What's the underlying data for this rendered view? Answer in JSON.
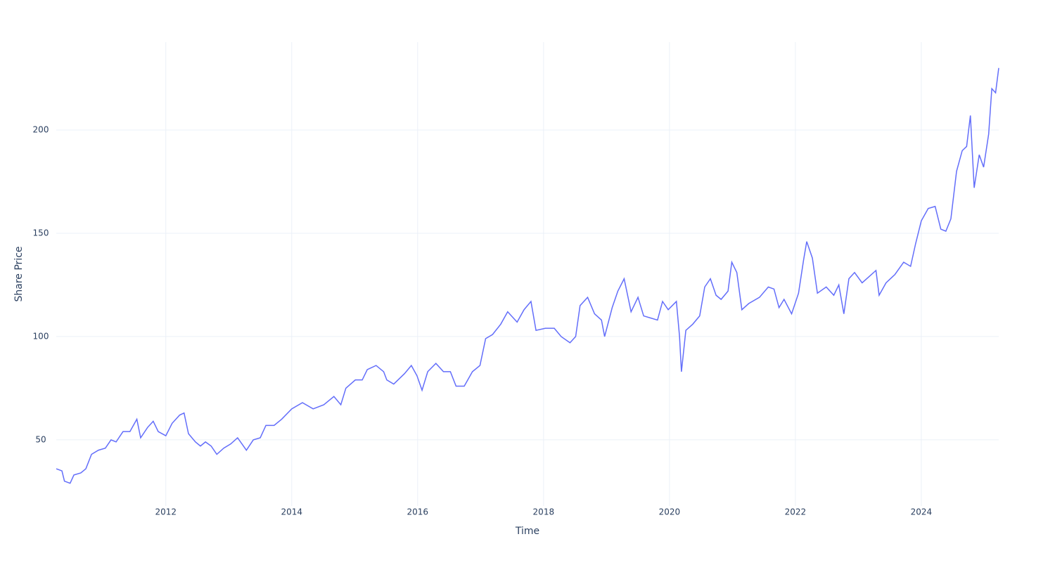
{
  "chart_data": {
    "type": "line",
    "xlabel": "Time",
    "ylabel": "Share Price",
    "x": [
      2010.26,
      2010.35,
      2010.39,
      2010.48,
      2010.54,
      2010.65,
      2010.73,
      2010.82,
      2010.93,
      2011.04,
      2011.13,
      2011.21,
      2011.32,
      2011.43,
      2011.54,
      2011.6,
      2011.71,
      2011.8,
      2011.88,
      2012.0,
      2012.1,
      2012.22,
      2012.29,
      2012.36,
      2012.47,
      2012.55,
      2012.63,
      2012.72,
      2012.81,
      2012.92,
      2013.03,
      2013.14,
      2013.28,
      2013.39,
      2013.5,
      2013.59,
      2013.72,
      2013.84,
      2014.0,
      2014.17,
      2014.34,
      2014.51,
      2014.67,
      2014.78,
      2014.86,
      2015.01,
      2015.12,
      2015.2,
      2015.34,
      2015.46,
      2015.51,
      2015.62,
      2015.79,
      2015.9,
      2015.99,
      2016.07,
      2016.16,
      2016.29,
      2016.41,
      2016.52,
      2016.61,
      2016.74,
      2016.87,
      2016.99,
      2017.08,
      2017.19,
      2017.32,
      2017.43,
      2017.58,
      2017.69,
      2017.8,
      2017.88,
      2018.03,
      2018.17,
      2018.28,
      2018.42,
      2018.51,
      2018.58,
      2018.7,
      2018.81,
      2018.92,
      2018.97,
      2019.09,
      2019.18,
      2019.28,
      2019.39,
      2019.5,
      2019.59,
      2019.7,
      2019.81,
      2019.89,
      2019.98,
      2020.11,
      2020.16,
      2020.19,
      2020.26,
      2020.37,
      2020.48,
      2020.56,
      2020.65,
      2020.74,
      2020.82,
      2020.93,
      2020.99,
      2021.07,
      2021.15,
      2021.26,
      2021.43,
      2021.57,
      2021.66,
      2021.74,
      2021.82,
      2021.94,
      2022.05,
      2022.13,
      2022.18,
      2022.27,
      2022.35,
      2022.49,
      2022.61,
      2022.69,
      2022.77,
      2022.85,
      2022.94,
      2023.06,
      2023.17,
      2023.28,
      2023.33,
      2023.44,
      2023.58,
      2023.72,
      2023.83,
      2023.91,
      2024.0,
      2024.11,
      2024.22,
      2024.31,
      2024.39,
      2024.47,
      2024.56,
      2024.65,
      2024.72,
      2024.78,
      2024.84,
      2024.92,
      2024.99,
      2025.07,
      2025.12,
      2025.18,
      2025.23
    ],
    "series": [
      {
        "name": "Share Price",
        "color": "#636efa",
        "values": [
          36,
          35,
          30,
          29,
          33,
          34,
          36,
          43,
          45,
          46,
          50,
          49,
          54,
          54,
          60,
          51,
          56,
          59,
          54,
          52,
          58,
          62,
          63,
          53,
          49,
          47,
          49,
          47,
          43,
          46,
          48,
          51,
          45,
          50,
          51,
          57,
          57,
          60,
          65,
          68,
          65,
          67,
          71,
          67,
          75,
          79,
          79,
          84,
          86,
          83,
          79,
          77,
          82,
          86,
          81,
          74,
          83,
          87,
          83,
          83,
          76,
          76,
          83,
          86,
          99,
          101,
          106,
          112,
          107,
          113,
          117,
          103,
          104,
          104,
          100,
          97,
          100,
          115,
          119,
          111,
          108,
          100,
          114,
          122,
          128,
          112,
          119,
          110,
          109,
          108,
          117,
          113,
          117,
          100,
          83,
          103,
          106,
          110,
          124,
          128,
          120,
          118,
          122,
          136,
          131,
          113,
          116,
          119,
          124,
          123,
          114,
          118,
          111,
          121,
          137,
          146,
          138,
          121,
          124,
          120,
          125,
          111,
          128,
          131,
          126,
          129,
          132,
          120,
          126,
          130,
          136,
          134,
          145,
          156,
          162,
          163,
          152,
          151,
          157,
          180,
          190,
          192,
          207,
          172,
          188,
          182,
          198,
          220,
          218,
          230
        ]
      }
    ],
    "xlim": [
      2010.26,
      2025.23
    ],
    "xticks": [
      2012,
      2014,
      2016,
      2018,
      2020,
      2022,
      2024
    ],
    "ylim": [
      18,
      242.5
    ],
    "yticks": [
      50,
      100,
      150,
      200
    ],
    "grid": true
  }
}
